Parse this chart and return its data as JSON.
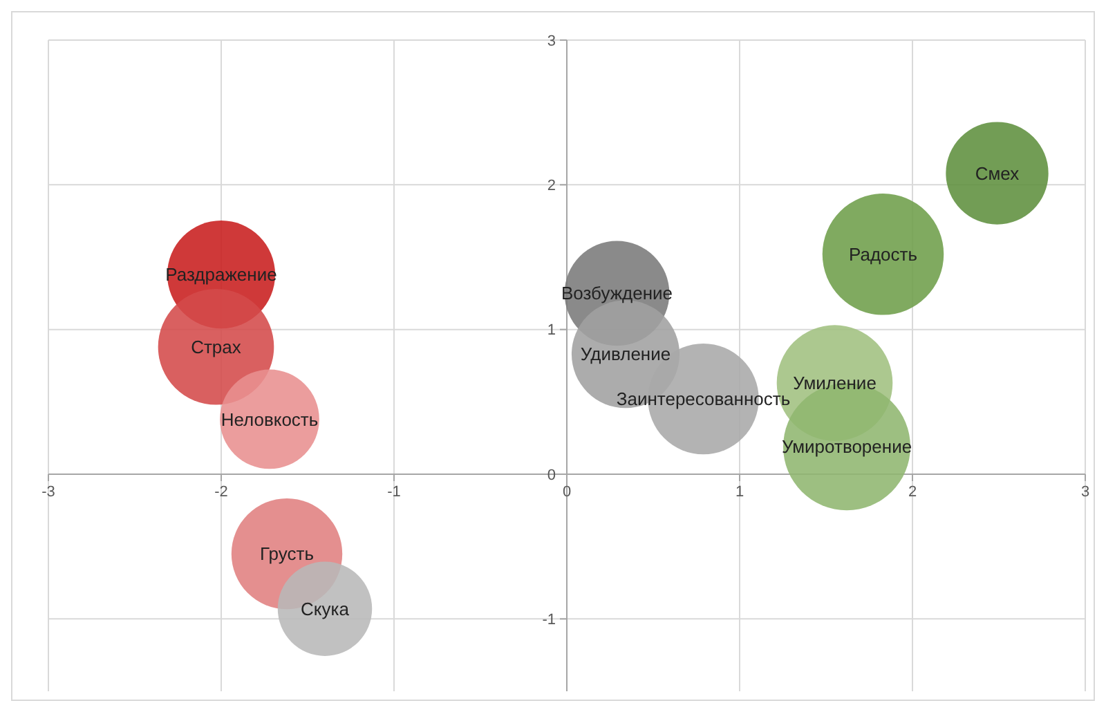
{
  "chart_data": {
    "type": "bubble",
    "xlim": [
      -3,
      3
    ],
    "ylim": [
      -1.5,
      3
    ],
    "xticks": [
      -3,
      -2,
      -1,
      0,
      1,
      2,
      3
    ],
    "yticks": [
      -1,
      0,
      1,
      2,
      3
    ],
    "grid": true,
    "series": [
      {
        "name": "Смех",
        "color": "#5f8f3e",
        "x": [
          2.49
        ],
        "values": [
          2.08
        ],
        "sizes": [
          0.65
        ]
      },
      {
        "name": "Радость",
        "color": "#6e9e4a",
        "x": [
          1.83
        ],
        "values": [
          1.52
        ],
        "sizes": [
          0.91
        ]
      },
      {
        "name": "Раздражение",
        "color": "#c81e1e",
        "x": [
          -2.0
        ],
        "values": [
          1.38
        ],
        "sizes": [
          0.72
        ]
      },
      {
        "name": "Страх",
        "color": "#d44a4a",
        "x": [
          -2.03
        ],
        "values": [
          0.88
        ],
        "sizes": [
          0.83
        ]
      },
      {
        "name": "Неловкость",
        "color": "#e89090",
        "x": [
          -1.72
        ],
        "values": [
          0.38
        ],
        "sizes": [
          0.61
        ]
      },
      {
        "name": "Возбуждение",
        "color": "#7a7a7a",
        "x": [
          0.29
        ],
        "values": [
          1.25
        ],
        "sizes": [
          0.68
        ]
      },
      {
        "name": "Удивление",
        "color": "#a0a0a0",
        "x": [
          0.34
        ],
        "values": [
          0.83
        ],
        "sizes": [
          0.72
        ]
      },
      {
        "name": "Заинтересованность",
        "color": "#a8a8a8",
        "x": [
          0.79
        ],
        "values": [
          0.52
        ],
        "sizes": [
          0.76
        ]
      },
      {
        "name": "Умиление",
        "color": "#a0c080",
        "x": [
          1.55
        ],
        "values": [
          0.63
        ],
        "sizes": [
          0.83
        ]
      },
      {
        "name": "Умиротворение",
        "color": "#8fb670",
        "x": [
          1.62
        ],
        "values": [
          0.19
        ],
        "sizes": [
          1
        ]
      },
      {
        "name": "Грусть",
        "color": "#e07f7f",
        "x": [
          -1.62
        ],
        "values": [
          -0.55
        ],
        "sizes": [
          0.76
        ]
      },
      {
        "name": "Скука",
        "color": "#b8b8b8",
        "x": [
          -1.4
        ],
        "values": [
          -0.93
        ],
        "sizes": [
          0.55
        ]
      }
    ]
  }
}
